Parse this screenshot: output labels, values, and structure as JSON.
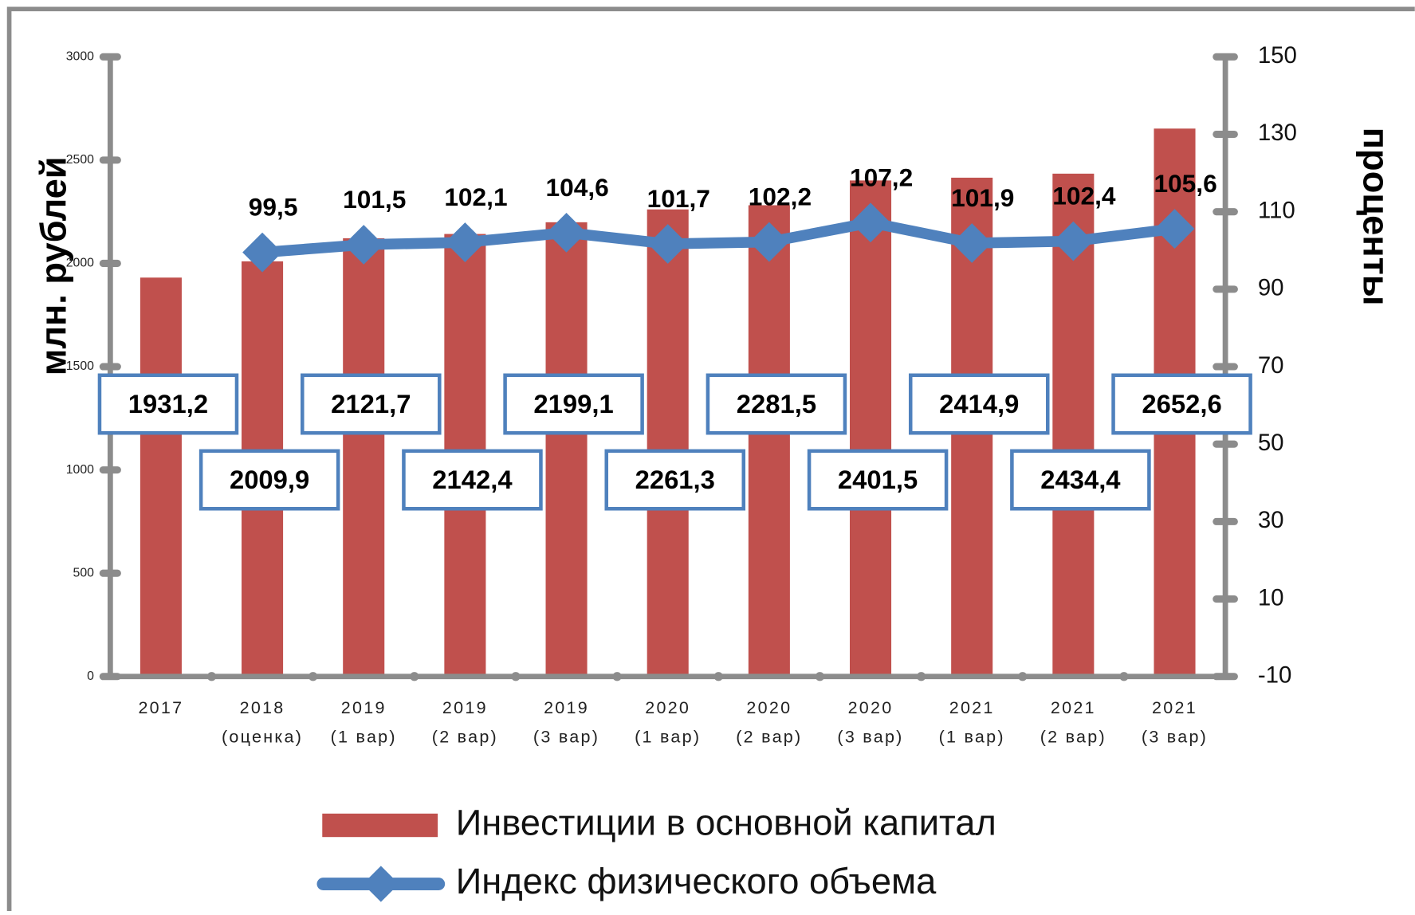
{
  "chart_data": {
    "type": "bar",
    "categories": [
      [
        "2017"
      ],
      [
        "2018",
        "(оценка)"
      ],
      [
        "2019",
        "(1 вар)"
      ],
      [
        "2019",
        "(2 вар)"
      ],
      [
        "2019",
        "(3 вар)"
      ],
      [
        "2020",
        "(1 вар)"
      ],
      [
        "2020",
        "(2 вар)"
      ],
      [
        "2020",
        "(3 вар)"
      ],
      [
        "2021",
        "(1 вар)"
      ],
      [
        "2021",
        "(2 вар)"
      ],
      [
        "2021",
        "(3 вар)"
      ]
    ],
    "ylabel": "млн. рублей",
    "y2label": "проценты",
    "ylim": [
      0,
      3000
    ],
    "yticks": [
      0,
      500,
      1000,
      1500,
      2000,
      2500,
      3000
    ],
    "y2lim": [
      -10,
      150
    ],
    "y2ticks": [
      -10,
      10,
      30,
      50,
      70,
      90,
      110,
      130,
      150
    ],
    "legend": "bottom",
    "series": [
      {
        "name": "Инвестиции в основной капитал",
        "type": "bar",
        "color": "#c0504d",
        "values": [
          1931.2,
          2009.9,
          2121.7,
          2142.4,
          2199.1,
          2261.3,
          2281.5,
          2401.5,
          2414.9,
          2434.4,
          2652.6
        ],
        "value_labels": [
          "1931,2",
          "2009,9",
          "2121,7",
          "2142,4",
          "2199,1",
          "2261,3",
          "2281,5",
          "2401,5",
          "2414,9",
          "2434,4",
          "2652,6"
        ]
      },
      {
        "name": "Индекс физического объема",
        "type": "line",
        "axis": "y2",
        "color": "#4f81bd",
        "values": [
          null,
          99.5,
          101.5,
          102.1,
          104.6,
          101.7,
          102.2,
          107.2,
          101.9,
          102.4,
          105.6
        ],
        "value_labels": [
          null,
          "99,5",
          "101,5",
          "102,1",
          "104,6",
          "101,7",
          "102,2",
          "107,2",
          "101,9",
          "102,4",
          "105,6"
        ]
      }
    ]
  }
}
